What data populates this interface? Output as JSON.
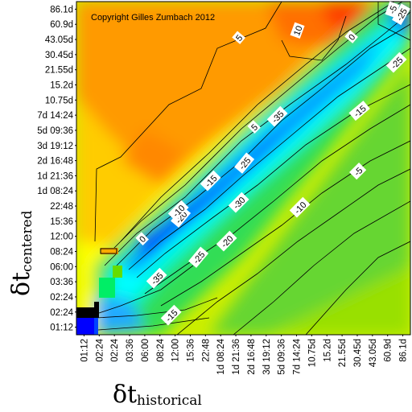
{
  "chart_data": {
    "type": "heatmap",
    "title": "",
    "annotation": "Copyright Gilles Zumbach 2012",
    "xlabel": {
      "main": "δt",
      "sub": "historical"
    },
    "ylabel": {
      "main": "δt",
      "sub": "centered"
    },
    "x_ticks": [
      "01:12",
      "02:24",
      "02:24",
      "03:36",
      "06:00",
      "08:24",
      "12:00",
      "15:36",
      "22:48",
      "1d 08:24",
      "1d 21:36",
      "2d 16:48",
      "3d 19:12",
      "5d 09:36",
      "7d 14:24",
      "10.75d",
      "15.2d",
      "21.55d",
      "30.45d",
      "43.05d",
      "60.9d",
      "86.1d"
    ],
    "y_ticks": [
      "86.1d",
      "60.9d",
      "43.05d",
      "30.45d",
      "21.55d",
      "15.2d",
      "10.75d",
      "7d 14:24",
      "5d 09:36",
      "3d 19:12",
      "2d 16:48",
      "1d 21:36",
      "1d 08:24",
      "22:48",
      "15:36",
      "12:00",
      "08:24",
      "06:00",
      "03:36",
      "02:24",
      "02:24",
      "01:12"
    ],
    "contour_labels": [
      "10",
      "5",
      "0",
      "-5",
      "-10",
      "-15",
      "-20",
      "-25",
      "-30",
      "-35"
    ],
    "contour_levels": [
      -35,
      -30,
      -25,
      -20,
      -15,
      -10,
      -5,
      0,
      5,
      10
    ],
    "colorscale": [
      "#0000ff",
      "#0077ff",
      "#00ffff",
      "#00ee88",
      "#33dd33",
      "#aaee00",
      "#ffff00",
      "#ffcc00",
      "#ff9900",
      "#ff4400"
    ],
    "grid": false,
    "legend": "none"
  }
}
